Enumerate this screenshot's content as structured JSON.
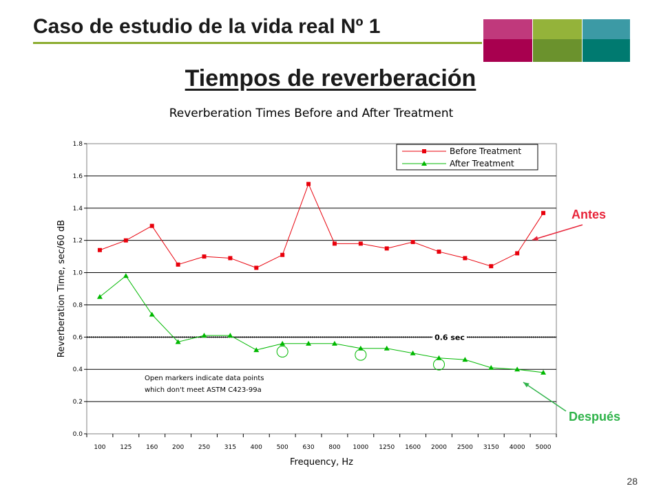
{
  "slide": {
    "title": "Caso de estudio de la vida real Nº 1",
    "subtitle": "Tiempos de reverberación",
    "page_number": "28"
  },
  "deco_colors": {
    "top_row": [
      "#c0397c",
      "#94b33a",
      "#3c9aa5"
    ],
    "bottom_row": [
      "#a8004f",
      "#6b922d",
      "#007a70"
    ],
    "rule": "#8aab2d"
  },
  "annotations": {
    "before_label": "Antes",
    "after_label": "Después",
    "before_color": "#e8253a",
    "after_color": "#2fb34a",
    "threshold_label": "0.6 sec",
    "note_line1": "Open markers indicate data points",
    "note_line2": "which don't meet ASTM C423-99a"
  },
  "chart_data": {
    "type": "line",
    "title": "Reverberation Times Before and After Treatment",
    "xlabel": "Frequency, Hz",
    "ylabel": "Reverberation Time, sec/60 dB",
    "categories": [
      "100",
      "125",
      "160",
      "200",
      "250",
      "315",
      "400",
      "500",
      "630",
      "800",
      "1000",
      "1250",
      "1600",
      "2000",
      "2500",
      "3150",
      "4000",
      "5000"
    ],
    "ylim": [
      0,
      1.8
    ],
    "yticks": [
      "0.0",
      "0.2",
      "0.4",
      "0.6",
      "0.8",
      "1.0",
      "1.2",
      "1.4",
      "1.6",
      "1.8"
    ],
    "grid": true,
    "legend_position": "top-right",
    "threshold": 0.6,
    "series": [
      {
        "name": "Before Treatment",
        "color": "#e8000b",
        "marker": "square",
        "values": [
          1.14,
          1.2,
          1.29,
          1.05,
          1.1,
          1.09,
          1.03,
          1.11,
          1.55,
          1.18,
          1.18,
          1.15,
          1.19,
          1.13,
          1.09,
          1.04,
          1.12,
          1.37
        ]
      },
      {
        "name": "After Treatment",
        "color": "#00b800",
        "marker": "triangle",
        "values": [
          0.85,
          0.98,
          0.74,
          0.57,
          0.61,
          0.61,
          0.52,
          0.56,
          0.56,
          0.56,
          0.53,
          0.53,
          0.5,
          0.47,
          0.46,
          0.41,
          0.4,
          0.38
        ]
      }
    ],
    "open_markers": [
      {
        "category": "500",
        "value": 0.51
      },
      {
        "category": "1000",
        "value": 0.49
      },
      {
        "category": "2000",
        "value": 0.43
      }
    ]
  }
}
